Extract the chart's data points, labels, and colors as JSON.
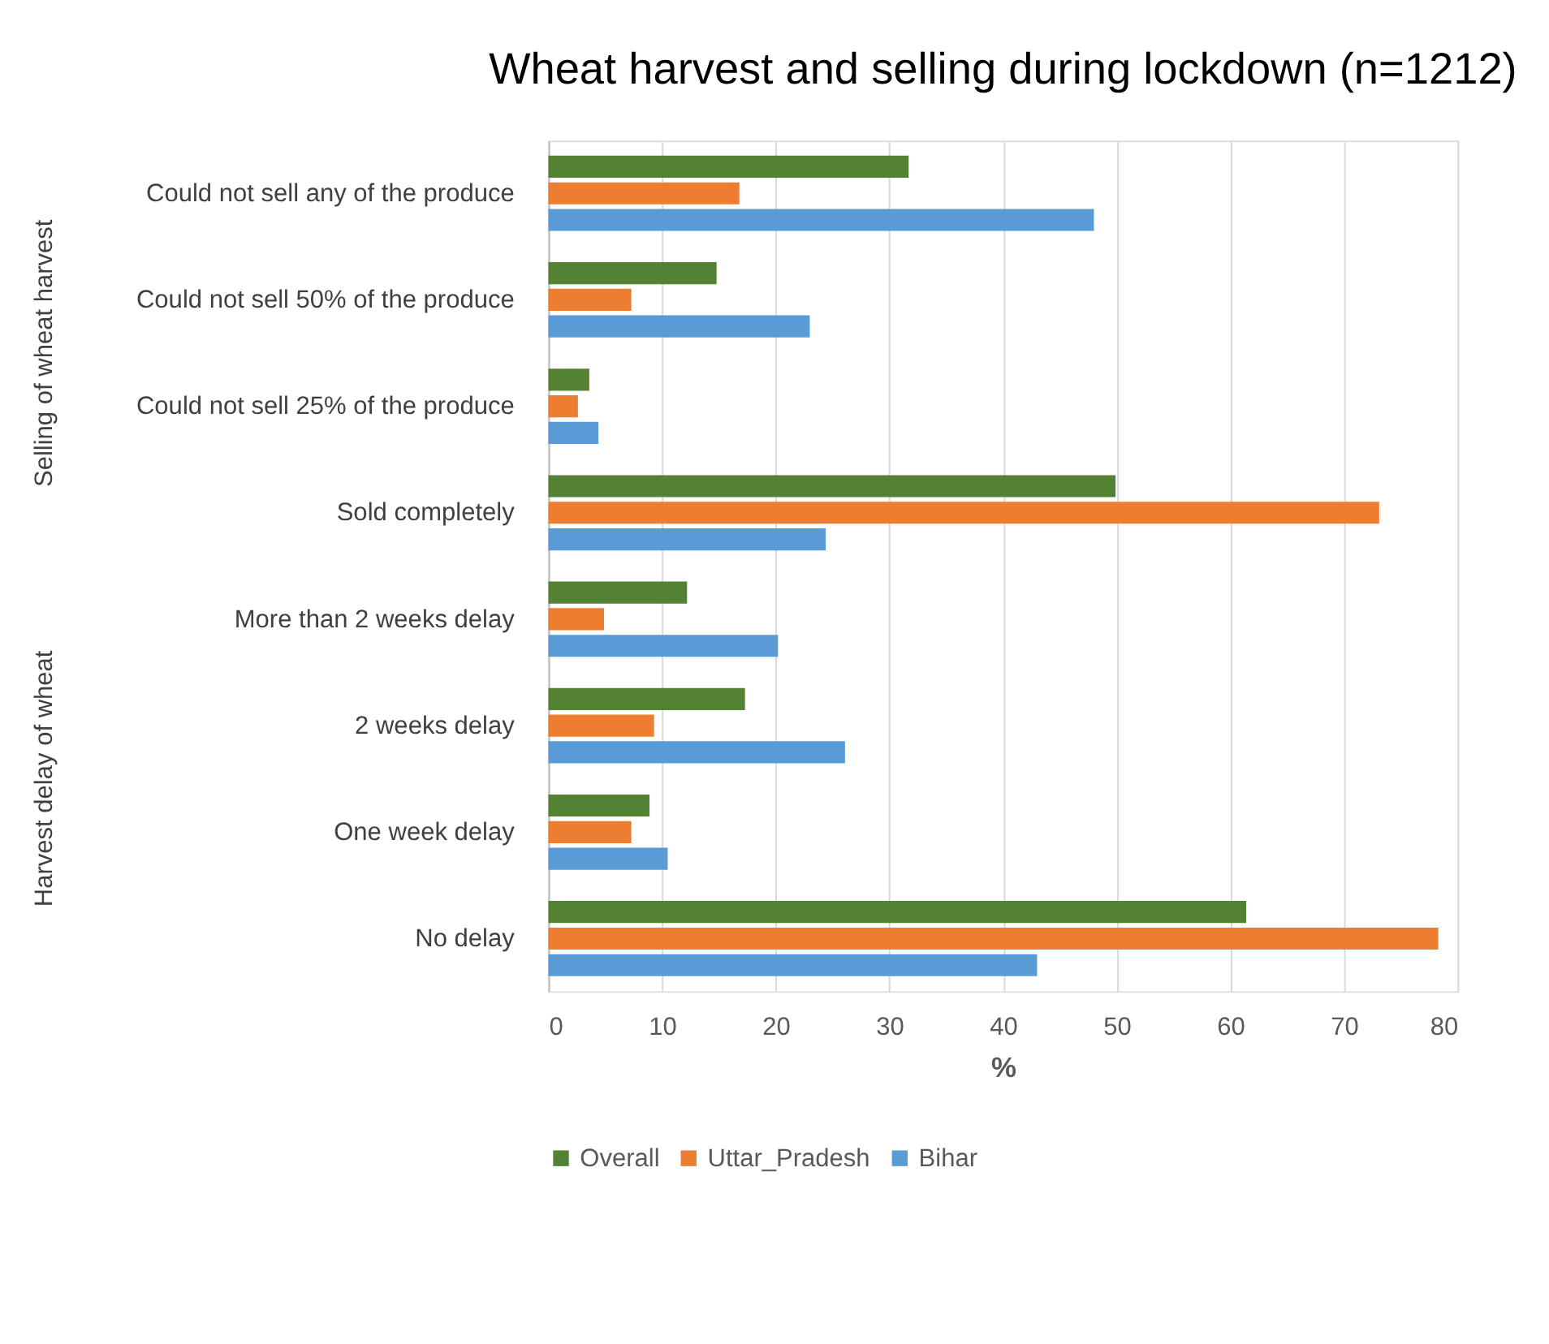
{
  "chart_data": {
    "type": "bar",
    "orientation": "horizontal",
    "title": "Wheat harvest and selling during lockdown (n=1212)",
    "xlabel": "%",
    "categories": [
      "Could not sell any of the produce",
      "Could not sell 50% of the produce",
      "Could not sell 25% of the produce",
      "Sold completely",
      "More than 2 weeks delay",
      "2 weeks delay",
      "One week delay",
      "No delay"
    ],
    "series": [
      {
        "name": "Overall",
        "color": "#548235",
        "values": [
          31.7,
          14.8,
          3.6,
          49.9,
          12.2,
          17.3,
          8.9,
          61.4
        ]
      },
      {
        "name": "Uttar_Pradesh",
        "color": "#ed7d31",
        "values": [
          16.8,
          7.3,
          2.6,
          73.1,
          4.9,
          9.3,
          7.3,
          78.3
        ]
      },
      {
        "name": "Bihar",
        "color": "#5b9bd5",
        "values": [
          48.0,
          23.0,
          4.4,
          24.4,
          20.2,
          26.1,
          10.5,
          43.0
        ]
      }
    ],
    "annotations": [
      "Selling of wheat harvest",
      "Harvest delay of wheat"
    ],
    "xlim": [
      0,
      80
    ],
    "xticks": [
      0,
      10,
      20,
      30,
      40,
      50,
      60,
      70,
      80
    ],
    "grid": "x",
    "legend": "bottom"
  }
}
